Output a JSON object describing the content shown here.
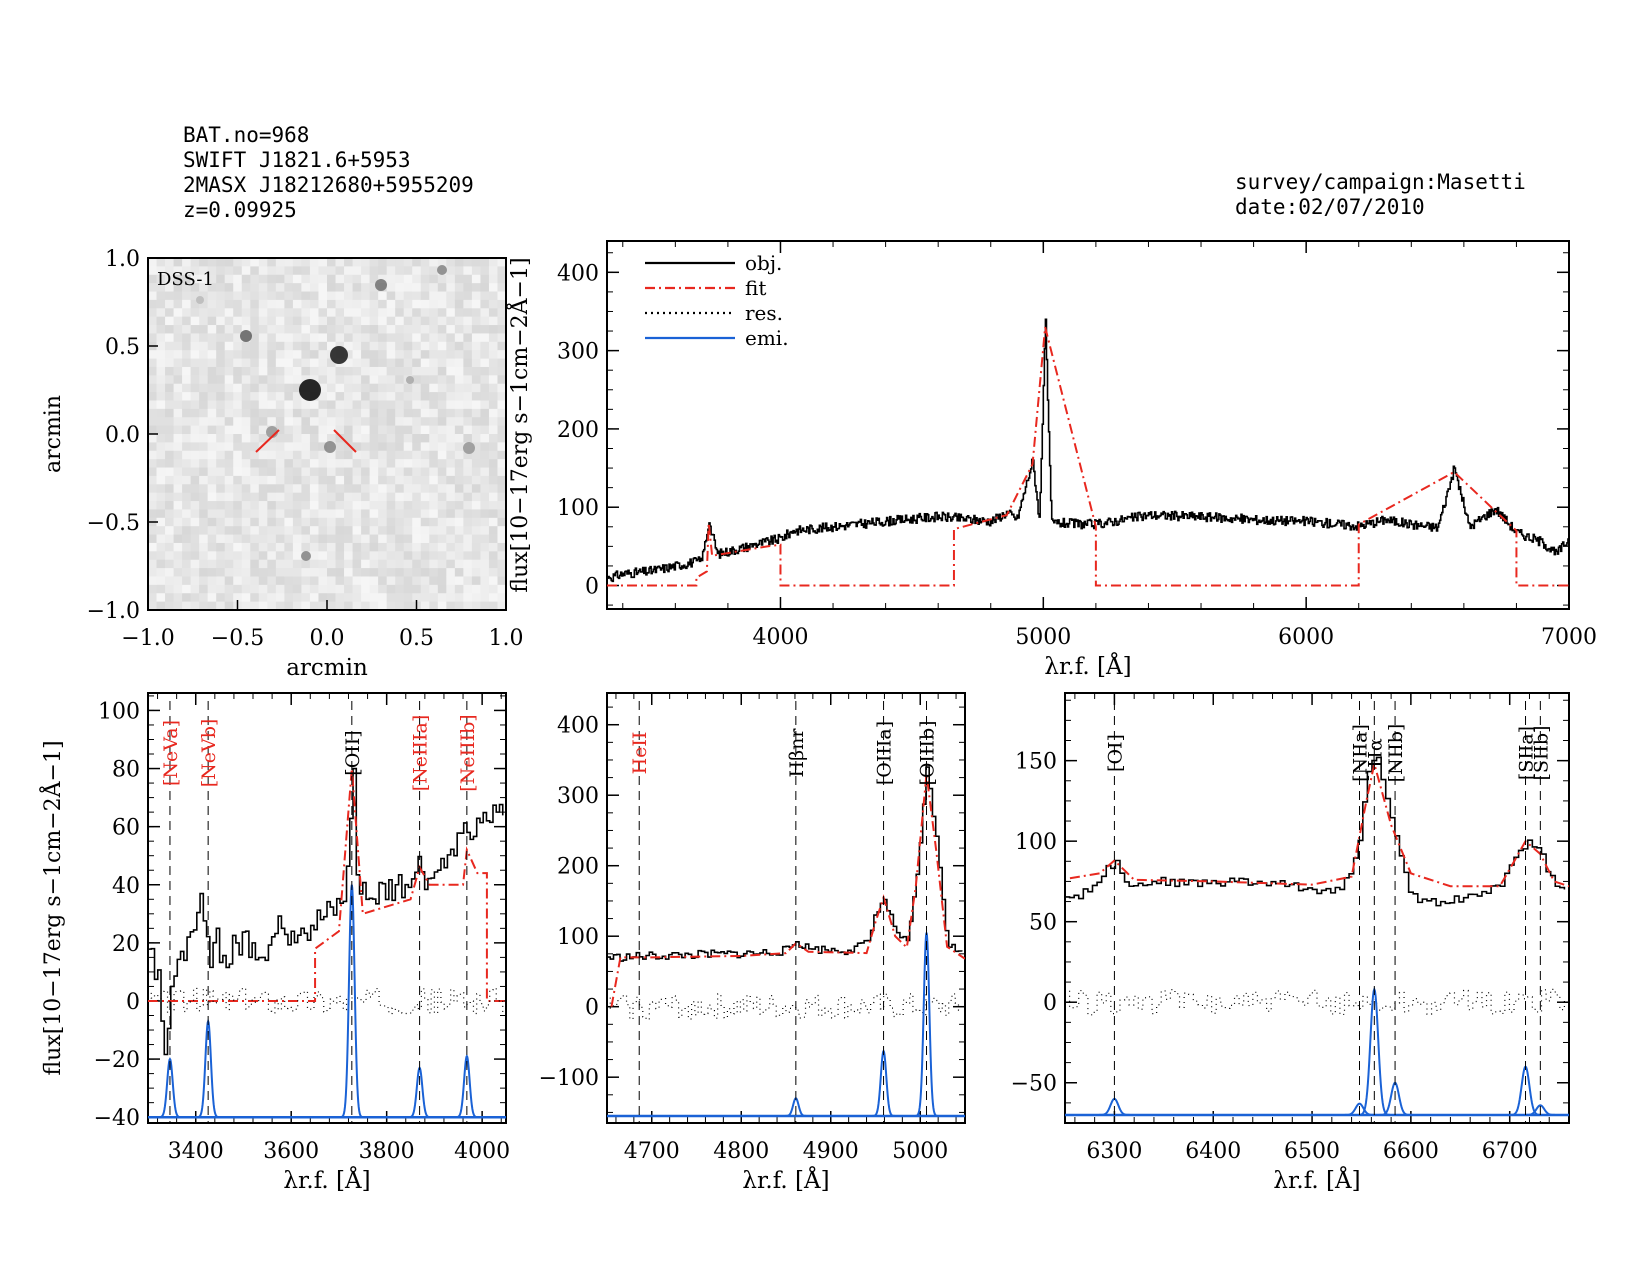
{
  "header": {
    "left": [
      "BAT.no=968",
      "SWIFT J1821.6+5953",
      "2MASX J18212680+5955209",
      "z=0.09925"
    ],
    "right": [
      "survey/campaign:Masetti",
      "date:02/07/2010"
    ]
  },
  "colors": {
    "obj": "#000000",
    "fit": "#e8281f",
    "res": "#000000",
    "emi": "#1a62d6",
    "marker": "#e8281f"
  },
  "image_panel": {
    "label": "DSS-1",
    "xlabel": "arcmin",
    "ylabel": "arcmin",
    "ticks": [
      "−1.0",
      "−0.5",
      "0.0",
      "0.5",
      "1.0"
    ]
  },
  "chart_data": [
    {
      "id": "main",
      "type": "line",
      "xlabel": "λr.f. [Å]",
      "ylabel": "flux[10−17erg s−1cm−2Å−1]",
      "xlim": [
        3340,
        7000
      ],
      "ylim": [
        -30,
        440
      ],
      "xticks": [
        "4000",
        "5000",
        "6000",
        "7000"
      ],
      "yticks": [
        "0",
        "100",
        "200",
        "300",
        "400"
      ],
      "legend": [
        {
          "label": "obj.",
          "series": "obj"
        },
        {
          "label": "fit",
          "series": "fit"
        },
        {
          "label": "res.",
          "series": "res"
        },
        {
          "label": "emi.",
          "series": "emi"
        }
      ],
      "series": {
        "obj": [
          [
            3350,
            10
          ],
          [
            3400,
            15
          ],
          [
            3500,
            18
          ],
          [
            3600,
            25
          ],
          [
            3700,
            32
          ],
          [
            3727,
            80
          ],
          [
            3760,
            40
          ],
          [
            3900,
            52
          ],
          [
            4000,
            60
          ],
          [
            4050,
            70
          ],
          [
            4200,
            75
          ],
          [
            4400,
            82
          ],
          [
            4600,
            88
          ],
          [
            4800,
            82
          ],
          [
            4861,
            93
          ],
          [
            4900,
            85
          ],
          [
            4959,
            160
          ],
          [
            4985,
            82
          ],
          [
            5007,
            340
          ],
          [
            5030,
            80
          ],
          [
            5200,
            78
          ],
          [
            5400,
            90
          ],
          [
            5600,
            88
          ],
          [
            5800,
            84
          ],
          [
            6000,
            82
          ],
          [
            6200,
            76
          ],
          [
            6300,
            84
          ],
          [
            6400,
            78
          ],
          [
            6500,
            74
          ],
          [
            6563,
            150
          ],
          [
            6620,
            75
          ],
          [
            6720,
            98
          ],
          [
            6800,
            68
          ],
          [
            6900,
            55
          ],
          [
            6950,
            40
          ],
          [
            7000,
            60
          ]
        ],
        "fit": [
          [
            3340,
            0
          ],
          [
            3680,
            0
          ],
          [
            3680,
            10
          ],
          [
            3720,
            18
          ],
          [
            3727,
            80
          ],
          [
            3740,
            38
          ],
          [
            3950,
            50
          ],
          [
            4000,
            52
          ],
          [
            4000,
            0
          ],
          [
            4660,
            0
          ],
          [
            4660,
            72
          ],
          [
            4861,
            90
          ],
          [
            4959,
            155
          ],
          [
            5007,
            330
          ],
          [
            5200,
            75
          ],
          [
            5200,
            0
          ],
          [
            6200,
            0
          ],
          [
            6200,
            78
          ],
          [
            6563,
            145
          ],
          [
            6720,
            95
          ],
          [
            6800,
            70
          ],
          [
            6800,
            0
          ],
          [
            7000,
            0
          ]
        ]
      }
    },
    {
      "id": "blue",
      "type": "line",
      "xlabel": "λr.f. [Å]",
      "ylabel": "flux[10−17erg s−1cm−2Å−1]",
      "xlim": [
        3300,
        4050
      ],
      "ylim": [
        -42,
        106
      ],
      "xticks": [
        "3400",
        "3600",
        "3800",
        "4000"
      ],
      "yticks": [
        "−40",
        "−20",
        "0",
        "20",
        "40",
        "60",
        "80",
        "100"
      ],
      "lines": [
        {
          "label": "[NeVa]",
          "x": 3346,
          "color": "red"
        },
        {
          "label": "[NeVb]",
          "x": 3426,
          "color": "red"
        },
        {
          "label": "[OII]",
          "x": 3727,
          "color": "black"
        },
        {
          "label": "[NeIIIa]",
          "x": 3869,
          "color": "red"
        },
        {
          "label": "[NeIIIb]",
          "x": 3968,
          "color": "red"
        }
      ],
      "series": {
        "obj": [
          [
            3305,
            18
          ],
          [
            3320,
            10
          ],
          [
            3335,
            -15
          ],
          [
            3350,
            5
          ],
          [
            3365,
            10
          ],
          [
            3380,
            22
          ],
          [
            3395,
            18
          ],
          [
            3410,
            35
          ],
          [
            3425,
            14
          ],
          [
            3440,
            25
          ],
          [
            3460,
            12
          ],
          [
            3480,
            18
          ],
          [
            3500,
            22
          ],
          [
            3520,
            20
          ],
          [
            3540,
            15
          ],
          [
            3560,
            22
          ],
          [
            3580,
            25
          ],
          [
            3600,
            24
          ],
          [
            3620,
            25
          ],
          [
            3640,
            26
          ],
          [
            3660,
            28
          ],
          [
            3680,
            30
          ],
          [
            3700,
            33
          ],
          [
            3715,
            40
          ],
          [
            3727,
            80
          ],
          [
            3738,
            38
          ],
          [
            3760,
            35
          ],
          [
            3790,
            38
          ],
          [
            3820,
            40
          ],
          [
            3850,
            42
          ],
          [
            3869,
            48
          ],
          [
            3885,
            42
          ],
          [
            3910,
            45
          ],
          [
            3940,
            50
          ],
          [
            3968,
            58
          ],
          [
            3990,
            58
          ],
          [
            4010,
            62
          ],
          [
            4030,
            65
          ],
          [
            4050,
            62
          ]
        ],
        "fit": [
          [
            3300,
            0
          ],
          [
            3650,
            0
          ],
          [
            3650,
            18
          ],
          [
            3700,
            24
          ],
          [
            3727,
            80
          ],
          [
            3750,
            30
          ],
          [
            3850,
            35
          ],
          [
            3869,
            46
          ],
          [
            3890,
            40
          ],
          [
            3960,
            40
          ],
          [
            3968,
            52
          ],
          [
            3990,
            44
          ],
          [
            4010,
            44
          ],
          [
            4010,
            0
          ],
          [
            4050,
            0
          ]
        ],
        "emi_baseline": -40,
        "emi_peaks": [
          [
            3346,
            20
          ],
          [
            3426,
            33
          ],
          [
            3727,
            80
          ],
          [
            3869,
            17
          ],
          [
            3968,
            21
          ]
        ]
      }
    },
    {
      "id": "hbeta",
      "type": "line",
      "xlabel": "λr.f. [Å]",
      "ylabel": "",
      "xlim": [
        4650,
        5050
      ],
      "ylim": [
        -165,
        445
      ],
      "xticks": [
        "4700",
        "4800",
        "4900",
        "5000"
      ],
      "yticks": [
        "−100",
        "0",
        "100",
        "200",
        "300",
        "400"
      ],
      "lines": [
        {
          "label": "HeII",
          "x": 4686,
          "color": "red"
        },
        {
          "label": "Hβnr",
          "x": 4861,
          "color": "black"
        },
        {
          "label": "[OIIIa]",
          "x": 4959,
          "color": "black"
        },
        {
          "label": "[OIIIb]",
          "x": 5007,
          "color": "black"
        }
      ],
      "series": {
        "obj": [
          [
            4660,
            70
          ],
          [
            4700,
            72
          ],
          [
            4760,
            74
          ],
          [
            4820,
            76
          ],
          [
            4850,
            80
          ],
          [
            4861,
            92
          ],
          [
            4875,
            82
          ],
          [
            4920,
            80
          ],
          [
            4940,
            90
          ],
          [
            4950,
            130
          ],
          [
            4959,
            152
          ],
          [
            4972,
            105
          ],
          [
            4985,
            88
          ],
          [
            4995,
            180
          ],
          [
            5007,
            340
          ],
          [
            5018,
            230
          ],
          [
            5030,
            90
          ],
          [
            5050,
            70
          ]
        ],
        "fit": [
          [
            4655,
            0
          ],
          [
            4665,
            70
          ],
          [
            4700,
            70
          ],
          [
            4800,
            72
          ],
          [
            4850,
            76
          ],
          [
            4861,
            90
          ],
          [
            4875,
            78
          ],
          [
            4940,
            76
          ],
          [
            4950,
            120
          ],
          [
            4959,
            155
          ],
          [
            4972,
            100
          ],
          [
            4985,
            84
          ],
          [
            4995,
            170
          ],
          [
            5007,
            330
          ],
          [
            5018,
            220
          ],
          [
            5030,
            85
          ],
          [
            5050,
            68
          ]
        ],
        "emi_baseline": -155,
        "emi_peaks": [
          [
            4861,
            25
          ],
          [
            4959,
            92
          ],
          [
            5007,
            260
          ]
        ]
      }
    },
    {
      "id": "halpha",
      "type": "line",
      "xlabel": "λr.f. [Å]",
      "ylabel": "",
      "xlim": [
        6250,
        6760
      ],
      "ylim": [
        -75,
        192
      ],
      "xticks": [
        "6300",
        "6400",
        "6500",
        "6600",
        "6700"
      ],
      "yticks": [
        "−50",
        "0",
        "50",
        "100",
        "150"
      ],
      "lines": [
        {
          "label": "[OI]",
          "x": 6300,
          "color": "black"
        },
        {
          "label": "[NIIa]",
          "x": 6548,
          "color": "black"
        },
        {
          "label": "Hα",
          "x": 6563,
          "color": "black"
        },
        {
          "label": "[NIIb]",
          "x": 6584,
          "color": "black"
        },
        {
          "label": "[SIIa]",
          "x": 6716,
          "color": "black"
        },
        {
          "label": "[SIIb]",
          "x": 6731,
          "color": "black"
        }
      ],
      "series": {
        "obj": [
          [
            6255,
            65
          ],
          [
            6270,
            68
          ],
          [
            6285,
            78
          ],
          [
            6300,
            88
          ],
          [
            6315,
            72
          ],
          [
            6340,
            75
          ],
          [
            6380,
            74
          ],
          [
            6420,
            75
          ],
          [
            6460,
            74
          ],
          [
            6500,
            70
          ],
          [
            6530,
            70
          ],
          [
            6545,
            95
          ],
          [
            6555,
            140
          ],
          [
            6563,
            152
          ],
          [
            6575,
            125
          ],
          [
            6590,
            85
          ],
          [
            6600,
            65
          ],
          [
            6630,
            62
          ],
          [
            6660,
            66
          ],
          [
            6690,
            72
          ],
          [
            6705,
            90
          ],
          [
            6716,
            100
          ],
          [
            6731,
            92
          ],
          [
            6745,
            72
          ],
          [
            6760,
            70
          ]
        ],
        "fit": [
          [
            6255,
            77
          ],
          [
            6285,
            80
          ],
          [
            6300,
            88
          ],
          [
            6320,
            76
          ],
          [
            6400,
            75
          ],
          [
            6500,
            73
          ],
          [
            6540,
            78
          ],
          [
            6555,
            125
          ],
          [
            6563,
            148
          ],
          [
            6580,
            110
          ],
          [
            6600,
            80
          ],
          [
            6640,
            72
          ],
          [
            6690,
            72
          ],
          [
            6705,
            88
          ],
          [
            6716,
            100
          ],
          [
            6731,
            92
          ],
          [
            6745,
            75
          ],
          [
            6760,
            72
          ]
        ],
        "emi_baseline": -70,
        "emi_peaks": [
          [
            6300,
            10
          ],
          [
            6548,
            7
          ],
          [
            6563,
            78
          ],
          [
            6584,
            20
          ],
          [
            6716,
            30
          ],
          [
            6731,
            6
          ]
        ]
      }
    }
  ]
}
